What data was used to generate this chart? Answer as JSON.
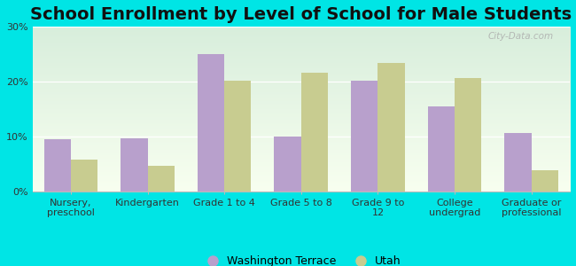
{
  "title": "School Enrollment by Level of School for Male Students",
  "categories": [
    "Nursery,\npreschool",
    "Kindergarten",
    "Grade 1 to 4",
    "Grade 5 to 8",
    "Grade 9 to\n12",
    "College\nundergrad",
    "Graduate or\nprofessional"
  ],
  "washington_terrace": [
    9.5,
    9.7,
    25.0,
    10.0,
    20.2,
    15.5,
    10.7
  ],
  "utah": [
    5.8,
    4.7,
    20.2,
    21.7,
    23.5,
    20.7,
    3.9
  ],
  "wt_color": "#b8a0cc",
  "utah_color": "#c8cc90",
  "background_color": "#00e5e5",
  "grad_top_left": "#d8eedc",
  "grad_bottom_right": "#f8fff0",
  "ylim": [
    0,
    30
  ],
  "yticks": [
    0,
    10,
    20,
    30
  ],
  "ytick_labels": [
    "0%",
    "10%",
    "20%",
    "30%"
  ],
  "legend_wt": "Washington Terrace",
  "legend_utah": "Utah",
  "bar_width": 0.35,
  "title_fontsize": 14,
  "tick_fontsize": 8,
  "legend_fontsize": 9,
  "watermark": "City-Data.com"
}
